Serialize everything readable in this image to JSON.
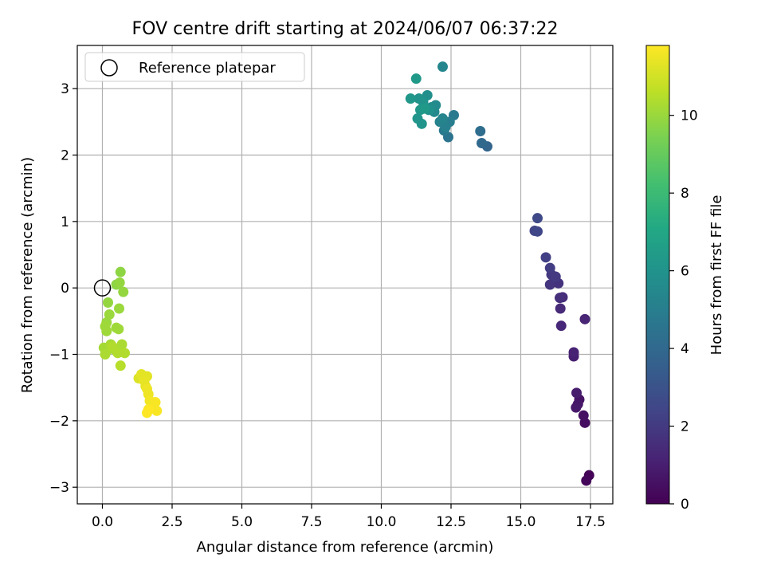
{
  "chart_data": {
    "type": "scatter",
    "title": "FOV centre drift starting at 2024/06/07 06:37:22",
    "xlabel": "Angular distance from reference (arcmin)",
    "ylabel": "Rotation from reference (arcmin)",
    "xlim": [
      -0.9,
      18.3
    ],
    "ylim": [
      -3.25,
      3.65
    ],
    "xticks": [
      0.0,
      2.5,
      5.0,
      7.5,
      10.0,
      12.5,
      15.0,
      17.5
    ],
    "xtick_labels": [
      "0.0",
      "2.5",
      "5.0",
      "7.5",
      "10.0",
      "12.5",
      "15.0",
      "17.5"
    ],
    "yticks": [
      -3,
      -2,
      -1,
      0,
      1,
      2,
      3
    ],
    "ytick_labels": [
      "−3",
      "−2",
      "−1",
      "0",
      "1",
      "2",
      "3"
    ],
    "grid": true,
    "legend": {
      "position": "top-left",
      "entries": [
        "Reference platepar"
      ]
    },
    "reference_point": {
      "x": 0.0,
      "y": 0.0
    },
    "colorbar": {
      "label": "Hours from first FF file",
      "colormap": "viridis",
      "range": [
        0,
        11.8
      ],
      "ticks": [
        0,
        2,
        4,
        6,
        8,
        10
      ],
      "tick_labels": [
        "0",
        "2",
        "4",
        "6",
        "8",
        "10"
      ]
    },
    "points": [
      {
        "x": 17.45,
        "y": -2.82,
        "c": 0.1
      },
      {
        "x": 17.35,
        "y": -2.9,
        "c": 0.2
      },
      {
        "x": 17.3,
        "y": -2.03,
        "c": 0.4
      },
      {
        "x": 17.25,
        "y": -1.92,
        "c": 0.5
      },
      {
        "x": 17.1,
        "y": -1.68,
        "c": 0.6
      },
      {
        "x": 17.05,
        "y": -1.75,
        "c": 0.7
      },
      {
        "x": 16.98,
        "y": -1.8,
        "c": 0.8
      },
      {
        "x": 17.0,
        "y": -1.58,
        "c": 0.9
      },
      {
        "x": 16.9,
        "y": -1.03,
        "c": 1.0
      },
      {
        "x": 16.9,
        "y": -0.97,
        "c": 1.1
      },
      {
        "x": 17.3,
        "y": -0.47,
        "c": 1.2
      },
      {
        "x": 16.45,
        "y": -0.57,
        "c": 1.3
      },
      {
        "x": 16.42,
        "y": -0.31,
        "c": 1.4
      },
      {
        "x": 16.5,
        "y": -0.14,
        "c": 1.5
      },
      {
        "x": 16.4,
        "y": -0.15,
        "c": 1.6
      },
      {
        "x": 16.35,
        "y": 0.07,
        "c": 1.7
      },
      {
        "x": 16.05,
        "y": 0.05,
        "c": 1.8
      },
      {
        "x": 16.1,
        "y": 0.2,
        "c": 1.9
      },
      {
        "x": 16.25,
        "y": 0.17,
        "c": 2.0
      },
      {
        "x": 16.05,
        "y": 0.3,
        "c": 2.1
      },
      {
        "x": 15.9,
        "y": 0.46,
        "c": 2.2
      },
      {
        "x": 15.5,
        "y": 0.86,
        "c": 2.4
      },
      {
        "x": 15.6,
        "y": 0.85,
        "c": 2.5
      },
      {
        "x": 15.6,
        "y": 1.05,
        "c": 2.6
      },
      {
        "x": 13.8,
        "y": 2.13,
        "c": 3.8
      },
      {
        "x": 13.6,
        "y": 2.18,
        "c": 4.0
      },
      {
        "x": 13.55,
        "y": 2.36,
        "c": 4.2
      },
      {
        "x": 12.4,
        "y": 2.27,
        "c": 4.5
      },
      {
        "x": 12.25,
        "y": 2.37,
        "c": 4.7
      },
      {
        "x": 12.6,
        "y": 2.6,
        "c": 4.8
      },
      {
        "x": 12.45,
        "y": 2.5,
        "c": 5.0
      },
      {
        "x": 12.3,
        "y": 2.42,
        "c": 5.1
      },
      {
        "x": 12.1,
        "y": 2.5,
        "c": 5.2
      },
      {
        "x": 12.2,
        "y": 2.55,
        "c": 5.3
      },
      {
        "x": 11.9,
        "y": 2.65,
        "c": 5.5
      },
      {
        "x": 11.95,
        "y": 2.75,
        "c": 5.6
      },
      {
        "x": 11.8,
        "y": 2.72,
        "c": 5.7
      },
      {
        "x": 11.65,
        "y": 2.9,
        "c": 5.8
      },
      {
        "x": 11.7,
        "y": 2.68,
        "c": 5.9
      },
      {
        "x": 11.5,
        "y": 2.8,
        "c": 6.0
      },
      {
        "x": 11.35,
        "y": 2.85,
        "c": 6.0
      },
      {
        "x": 11.3,
        "y": 2.55,
        "c": 6.1
      },
      {
        "x": 11.45,
        "y": 2.47,
        "c": 6.1
      },
      {
        "x": 11.4,
        "y": 2.68,
        "c": 6.2
      },
      {
        "x": 11.05,
        "y": 2.85,
        "c": 6.2
      },
      {
        "x": 11.25,
        "y": 3.15,
        "c": 6.3
      },
      {
        "x": 12.2,
        "y": 3.33,
        "c": 5.4
      },
      {
        "x": 11.55,
        "y": 2.7,
        "c": 6.3
      },
      {
        "x": 0.65,
        "y": 0.24,
        "c": 9.8
      },
      {
        "x": 0.5,
        "y": 0.05,
        "c": 9.8
      },
      {
        "x": 0.62,
        "y": 0.08,
        "c": 9.9
      },
      {
        "x": 0.75,
        "y": -0.06,
        "c": 9.9
      },
      {
        "x": 0.2,
        "y": -0.22,
        "c": 9.9
      },
      {
        "x": 0.6,
        "y": -0.31,
        "c": 10.0
      },
      {
        "x": 0.25,
        "y": -0.4,
        "c": 10.0
      },
      {
        "x": 0.15,
        "y": -0.52,
        "c": 10.0
      },
      {
        "x": 0.5,
        "y": -0.6,
        "c": 10.1
      },
      {
        "x": 0.58,
        "y": -0.62,
        "c": 10.1
      },
      {
        "x": 0.1,
        "y": -0.58,
        "c": 10.1
      },
      {
        "x": 0.15,
        "y": -0.65,
        "c": 10.1
      },
      {
        "x": 0.3,
        "y": -0.85,
        "c": 10.2
      },
      {
        "x": 0.05,
        "y": -0.9,
        "c": 10.2
      },
      {
        "x": 0.15,
        "y": -0.95,
        "c": 10.2
      },
      {
        "x": 0.1,
        "y": -1.0,
        "c": 10.3
      },
      {
        "x": 0.45,
        "y": -0.93,
        "c": 10.3
      },
      {
        "x": 0.7,
        "y": -0.85,
        "c": 10.3
      },
      {
        "x": 0.8,
        "y": -0.98,
        "c": 10.4
      },
      {
        "x": 0.55,
        "y": -0.98,
        "c": 10.4
      },
      {
        "x": 0.65,
        "y": -1.17,
        "c": 10.5
      },
      {
        "x": 0.35,
        "y": -0.88,
        "c": 10.4
      },
      {
        "x": 1.3,
        "y": -1.36,
        "c": 11.2
      },
      {
        "x": 1.4,
        "y": -1.3,
        "c": 11.3
      },
      {
        "x": 1.6,
        "y": -1.33,
        "c": 11.3
      },
      {
        "x": 1.5,
        "y": -1.4,
        "c": 11.4
      },
      {
        "x": 1.55,
        "y": -1.48,
        "c": 11.4
      },
      {
        "x": 1.6,
        "y": -1.52,
        "c": 11.5
      },
      {
        "x": 1.65,
        "y": -1.6,
        "c": 11.5
      },
      {
        "x": 1.7,
        "y": -1.7,
        "c": 11.6
      },
      {
        "x": 1.8,
        "y": -1.75,
        "c": 11.6
      },
      {
        "x": 1.9,
        "y": -1.72,
        "c": 11.7
      },
      {
        "x": 1.95,
        "y": -1.85,
        "c": 11.7
      },
      {
        "x": 1.6,
        "y": -1.88,
        "c": 11.8
      },
      {
        "x": 1.65,
        "y": -1.83,
        "c": 11.8
      }
    ]
  }
}
